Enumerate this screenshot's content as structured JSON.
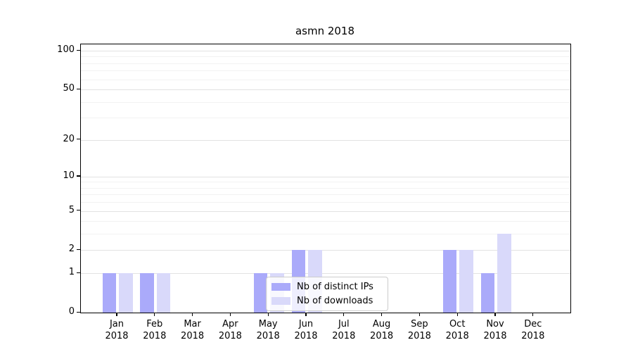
{
  "title": "asmn 2018",
  "legend": {
    "items": [
      {
        "label": "Nb of distinct IPs",
        "color": "#aaaafa"
      },
      {
        "label": "Nb of downloads",
        "color": "#d9d9fa"
      }
    ]
  },
  "axes": {
    "year": "2018",
    "months": [
      "Jan",
      "Feb",
      "Mar",
      "Apr",
      "May",
      "Jun",
      "Jul",
      "Aug",
      "Sep",
      "Oct",
      "Nov",
      "Dec"
    ]
  },
  "chart_data": {
    "type": "bar",
    "title": "asmn 2018",
    "categories": [
      "Jan 2018",
      "Feb 2018",
      "Mar 2018",
      "Apr 2018",
      "May 2018",
      "Jun 2018",
      "Jul 2018",
      "Aug 2018",
      "Sep 2018",
      "Oct 2018",
      "Nov 2018",
      "Dec 2018"
    ],
    "series": [
      {
        "name": "Nb of distinct IPs",
        "color": "#aaaafa",
        "values": [
          1,
          1,
          0,
          0,
          1,
          2,
          0,
          0,
          0,
          2,
          1,
          0
        ]
      },
      {
        "name": "Nb of downloads",
        "color": "#d9d9fa",
        "values": [
          1,
          1,
          0,
          0,
          1,
          2,
          0,
          0,
          0,
          2,
          3,
          0
        ]
      }
    ],
    "xlabel": "",
    "ylabel": "",
    "yscale": "log1p",
    "ylim": [
      0,
      112
    ],
    "y_ticks": [
      0,
      1,
      2,
      5,
      10,
      20,
      50,
      100
    ],
    "y_minor_gridlines": [
      3,
      4,
      6,
      7,
      8,
      9,
      30,
      40,
      60,
      70,
      80,
      90
    ],
    "grid": true,
    "legend_position": "inside lower center"
  }
}
